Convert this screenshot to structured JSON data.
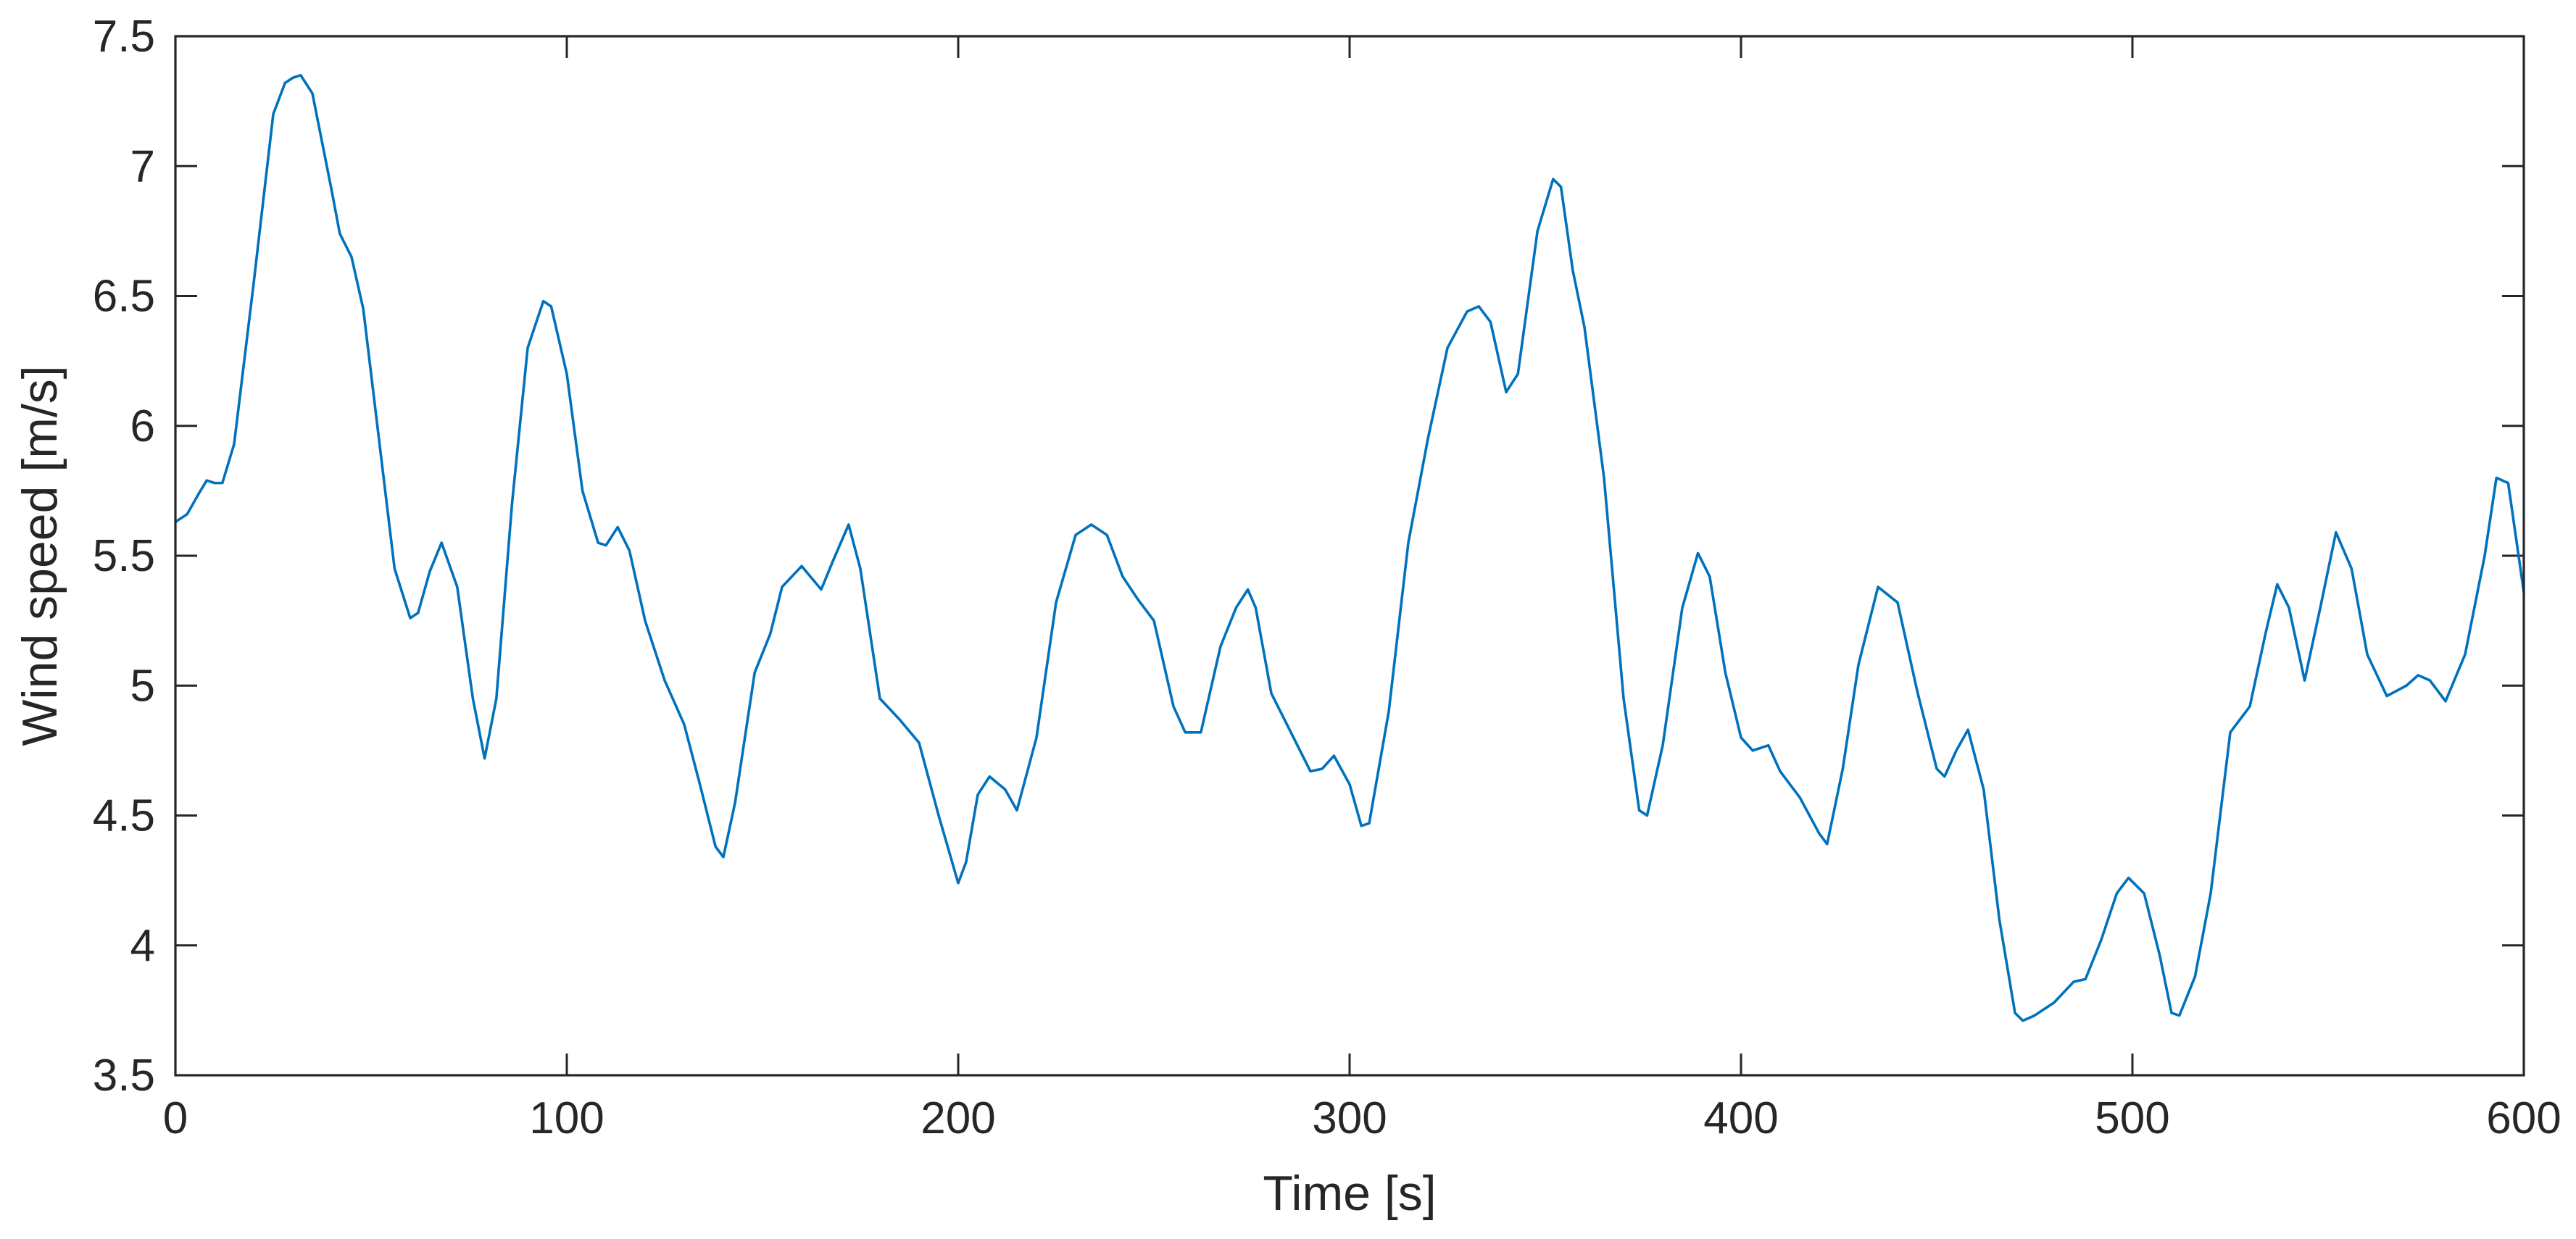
{
  "chart_data": {
    "type": "line",
    "title": "",
    "xlabel": "Time [s]",
    "ylabel": "Wind speed [m/s]",
    "xlim": [
      0,
      600
    ],
    "ylim": [
      3.5,
      7.5
    ],
    "xticks": [
      0,
      100,
      200,
      300,
      400,
      500,
      600
    ],
    "xtick_labels": [
      "0",
      "100",
      "200",
      "300",
      "400",
      "500",
      "600"
    ],
    "yticks": [
      3.5,
      4,
      4.5,
      5,
      5.5,
      6,
      6.5,
      7,
      7.5
    ],
    "ytick_labels": [
      "3.5",
      "4",
      "4.5",
      "5",
      "5.5",
      "6",
      "6.5",
      "7",
      "7.5"
    ],
    "grid": false,
    "legend": "none",
    "colors": {
      "line": "#0072BD",
      "axes": "#262626"
    },
    "series": [
      {
        "x": [
          0,
          3,
          6,
          8,
          10,
          12,
          15,
          20,
          25,
          28,
          30,
          32,
          35,
          40,
          42,
          45,
          48,
          52,
          56,
          60,
          62,
          65,
          68,
          72,
          76,
          79,
          82,
          86,
          90,
          94,
          96,
          100,
          104,
          108,
          110,
          113,
          116,
          120,
          125,
          130,
          134,
          138,
          140,
          143,
          148,
          152,
          155,
          160,
          165,
          168,
          172,
          175,
          180,
          185,
          190,
          195,
          200,
          202,
          205,
          208,
          212,
          215,
          220,
          225,
          230,
          234,
          238,
          242,
          246,
          250,
          255,
          258,
          262,
          267,
          271,
          274,
          276,
          280,
          285,
          290,
          293,
          296,
          300,
          303,
          305,
          310,
          315,
          320,
          325,
          330,
          333,
          336,
          340,
          343,
          348,
          352,
          354,
          357,
          360,
          365,
          370,
          374,
          376,
          380,
          385,
          389,
          392,
          396,
          400,
          403,
          407,
          410,
          415,
          420,
          422,
          426,
          430,
          435,
          440,
          445,
          450,
          452,
          455,
          458,
          462,
          466,
          470,
          472,
          475,
          480,
          485,
          488,
          492,
          496,
          499,
          503,
          507,
          510,
          512,
          516,
          520,
          525,
          530,
          534,
          537,
          540,
          544,
          548,
          552,
          556,
          560,
          565,
          570,
          573,
          576,
          580,
          585,
          590,
          593,
          596,
          600
        ],
        "y": [
          5.63,
          5.66,
          5.74,
          5.79,
          5.78,
          5.78,
          5.93,
          6.55,
          7.2,
          7.32,
          7.34,
          7.35,
          7.28,
          6.9,
          6.74,
          6.65,
          6.45,
          5.95,
          5.45,
          5.26,
          5.28,
          5.44,
          5.55,
          5.38,
          4.95,
          4.72,
          4.95,
          5.7,
          6.3,
          6.48,
          6.46,
          6.2,
          5.75,
          5.55,
          5.54,
          5.61,
          5.52,
          5.25,
          5.02,
          4.85,
          4.62,
          4.38,
          4.34,
          4.55,
          5.05,
          5.2,
          5.38,
          5.46,
          5.37,
          5.48,
          5.62,
          5.45,
          4.95,
          4.87,
          4.78,
          4.5,
          4.24,
          4.32,
          4.58,
          4.65,
          4.6,
          4.52,
          4.8,
          5.32,
          5.58,
          5.62,
          5.58,
          5.42,
          5.33,
          5.25,
          4.92,
          4.82,
          4.82,
          5.15,
          5.3,
          5.37,
          5.3,
          4.97,
          4.82,
          4.67,
          4.68,
          4.73,
          4.62,
          4.46,
          4.47,
          4.9,
          5.55,
          5.95,
          6.3,
          6.44,
          6.46,
          6.4,
          6.13,
          6.2,
          6.75,
          6.95,
          6.92,
          6.6,
          6.38,
          5.8,
          4.95,
          4.52,
          4.5,
          4.77,
          5.3,
          5.51,
          5.42,
          5.05,
          4.8,
          4.75,
          4.77,
          4.67,
          4.57,
          4.43,
          4.39,
          4.68,
          5.08,
          5.38,
          5.32,
          4.98,
          4.68,
          4.65,
          4.75,
          4.83,
          4.6,
          4.1,
          3.74,
          3.71,
          3.73,
          3.78,
          3.86,
          3.87,
          4.02,
          4.2,
          4.26,
          4.2,
          3.96,
          3.74,
          3.73,
          3.88,
          4.2,
          4.82,
          4.92,
          5.2,
          5.39,
          5.3,
          5.02,
          5.3,
          5.59,
          5.45,
          5.12,
          4.96,
          5.0,
          5.04,
          5.02,
          4.94,
          5.12,
          5.5,
          5.8,
          5.78,
          5.36
        ]
      }
    ]
  }
}
